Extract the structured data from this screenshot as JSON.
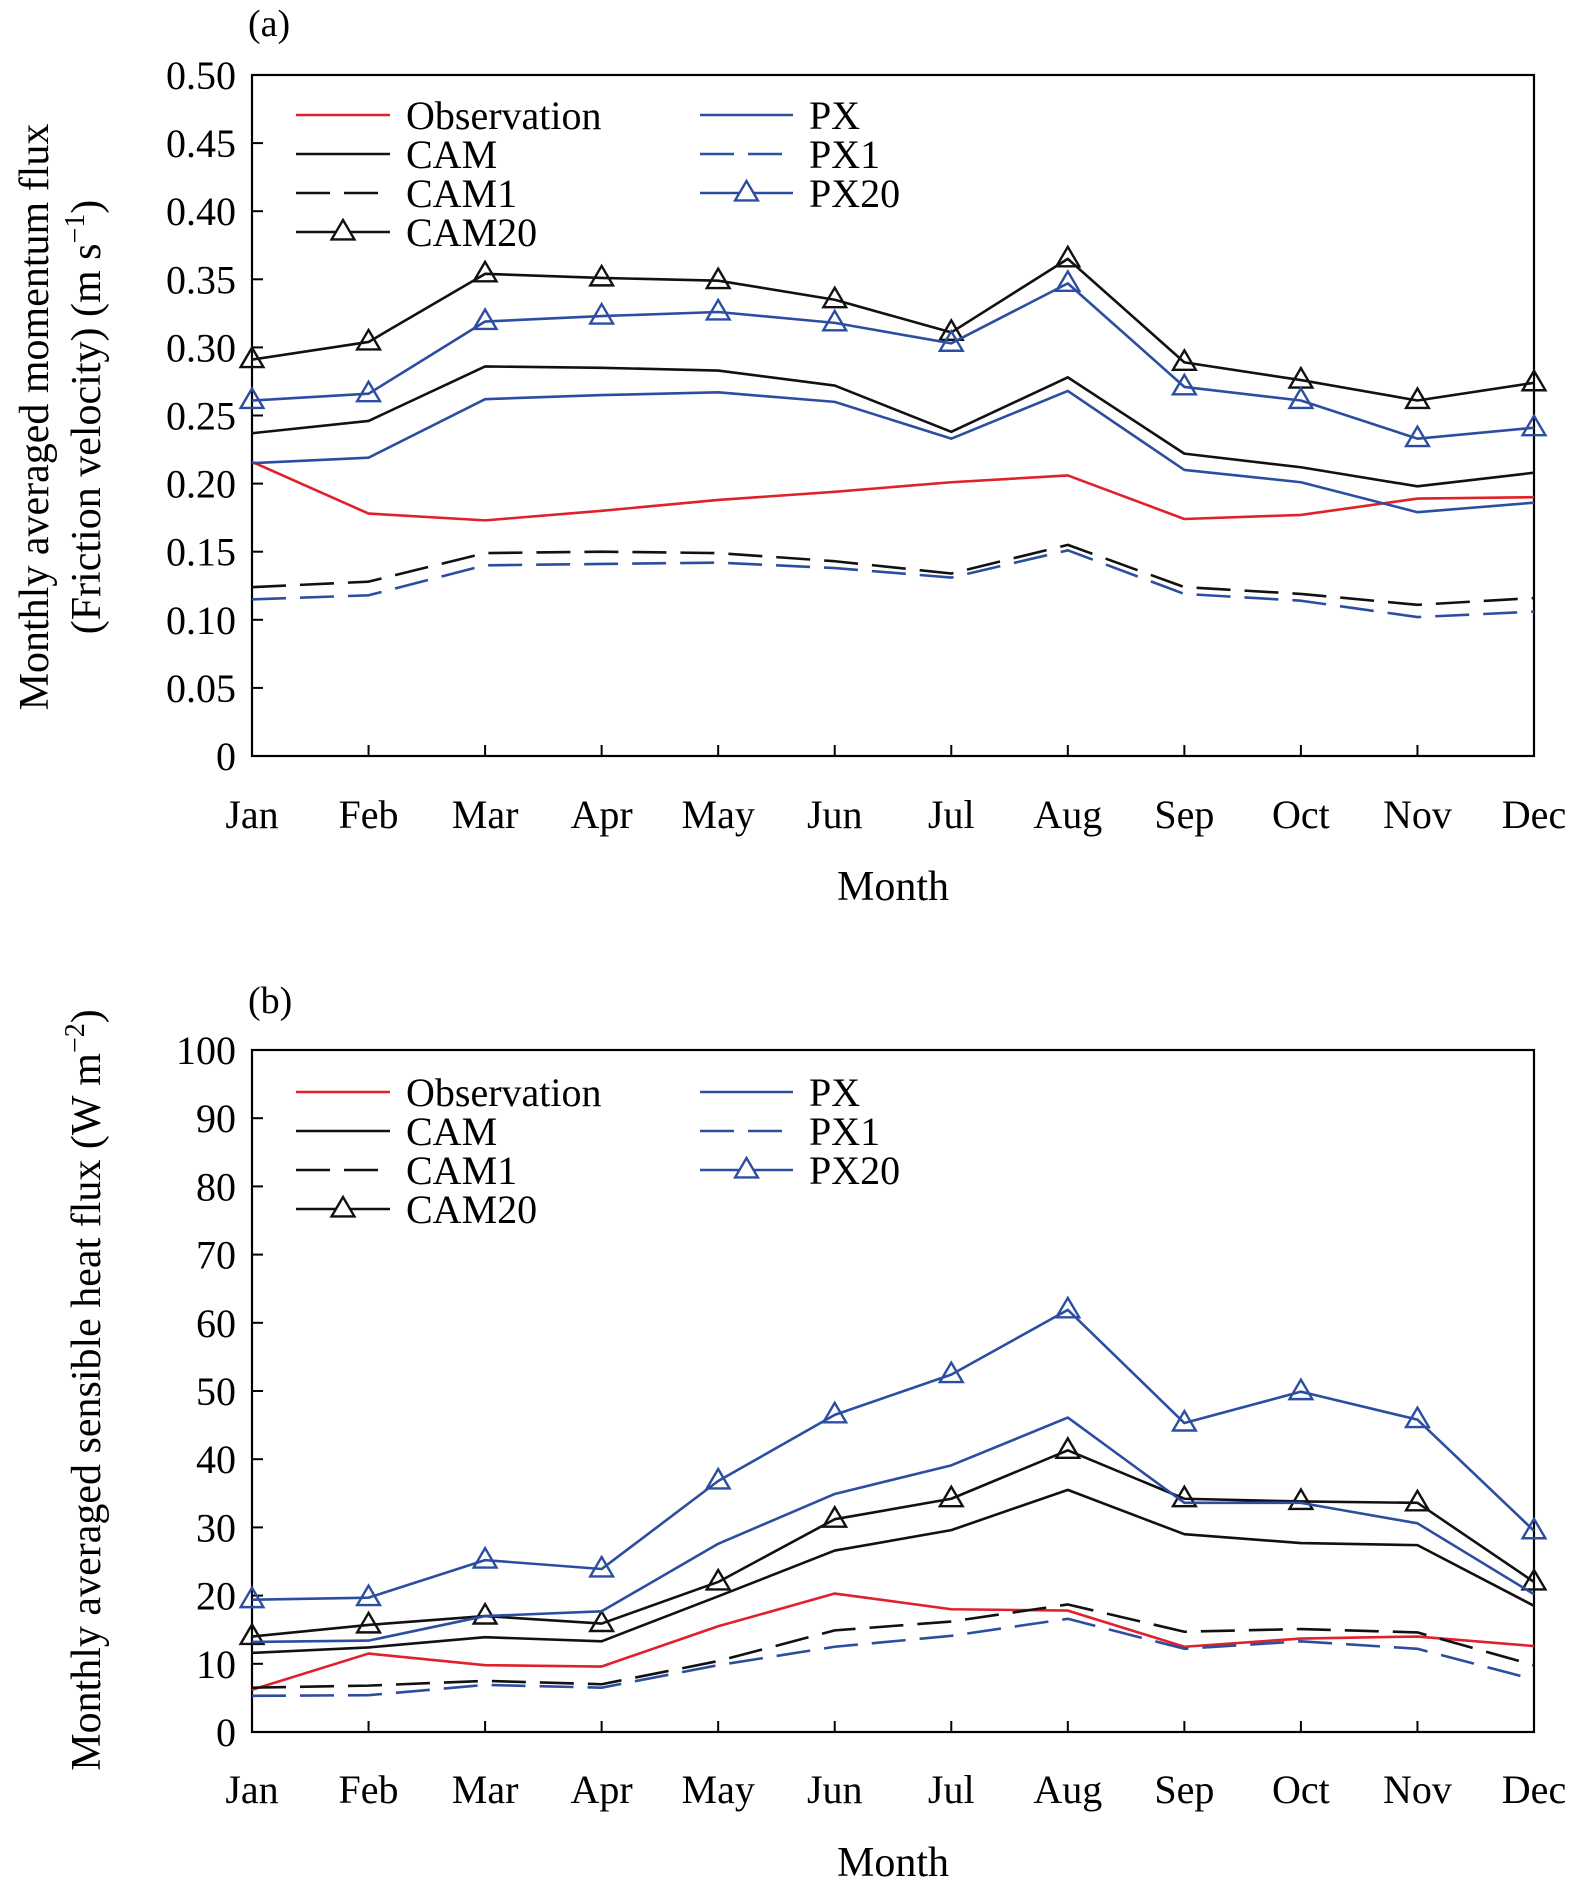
{
  "colors": {
    "observation": "#e0202a",
    "cam": "#111111",
    "px": "#2c4ea0"
  },
  "chart_data": [
    {
      "type": "line",
      "panel_label": "(a)",
      "xlabel": "Month",
      "ylabel_line1": "Monthly averaged momentum flux",
      "ylabel_line2": "(Friction velocity) (m s",
      "ylabel_sup": "−1",
      "ylabel_close": ")",
      "ylim": [
        0,
        0.5
      ],
      "yticks": [
        "0",
        "0.05",
        "0.10",
        "0.15",
        "0.20",
        "0.25",
        "0.30",
        "0.35",
        "0.40",
        "0.45",
        "0.50"
      ],
      "categories": [
        "Jan",
        "Feb",
        "Mar",
        "Apr",
        "May",
        "Jun",
        "Jul",
        "Aug",
        "Sep",
        "Oct",
        "Nov",
        "Dec"
      ],
      "legend_position": "top-left",
      "series": [
        {
          "name": "Observation",
          "color": "#e0202a",
          "style": "solid",
          "marker": "none",
          "values": [
            0.216,
            0.178,
            0.173,
            0.18,
            0.188,
            0.194,
            0.201,
            0.206,
            0.174,
            0.177,
            0.189,
            0.19
          ]
        },
        {
          "name": "CAM",
          "color": "#111111",
          "style": "solid",
          "marker": "none",
          "values": [
            0.237,
            0.246,
            0.286,
            0.285,
            0.283,
            0.272,
            0.238,
            0.278,
            0.222,
            0.212,
            0.198,
            0.208
          ]
        },
        {
          "name": "CAM1",
          "color": "#111111",
          "style": "dashed",
          "marker": "none",
          "values": [
            0.124,
            0.128,
            0.149,
            0.15,
            0.149,
            0.143,
            0.134,
            0.155,
            0.124,
            0.119,
            0.111,
            0.116
          ]
        },
        {
          "name": "CAM20",
          "color": "#111111",
          "style": "solid",
          "marker": "triangle",
          "values": [
            0.291,
            0.304,
            0.354,
            0.351,
            0.349,
            0.335,
            0.311,
            0.365,
            0.289,
            0.276,
            0.261,
            0.274
          ]
        },
        {
          "name": "PX",
          "color": "#2c4ea0",
          "style": "solid",
          "marker": "none",
          "values": [
            0.215,
            0.219,
            0.262,
            0.265,
            0.267,
            0.26,
            0.233,
            0.268,
            0.21,
            0.201,
            0.179,
            0.186
          ]
        },
        {
          "name": "PX1",
          "color": "#2c4ea0",
          "style": "dashed",
          "marker": "none",
          "values": [
            0.115,
            0.118,
            0.14,
            0.141,
            0.142,
            0.138,
            0.131,
            0.151,
            0.119,
            0.114,
            0.102,
            0.106
          ]
        },
        {
          "name": "PX20",
          "color": "#2c4ea0",
          "style": "solid",
          "marker": "triangle",
          "values": [
            0.261,
            0.266,
            0.319,
            0.323,
            0.326,
            0.318,
            0.303,
            0.347,
            0.271,
            0.261,
            0.233,
            0.241
          ]
        }
      ]
    },
    {
      "type": "line",
      "panel_label": "(b)",
      "xlabel": "Month",
      "ylabel_line1": "Monthly averaged sensible heat flux (W m",
      "ylabel_sup": "−2",
      "ylabel_close": ")",
      "ylim": [
        0,
        100
      ],
      "yticks": [
        "0",
        "10",
        "20",
        "30",
        "40",
        "50",
        "60",
        "70",
        "80",
        "90",
        "100"
      ],
      "categories": [
        "Jan",
        "Feb",
        "Mar",
        "Apr",
        "May",
        "Jun",
        "Jul",
        "Aug",
        "Sep",
        "Oct",
        "Nov",
        "Dec"
      ],
      "legend_position": "top-left",
      "series": [
        {
          "name": "Observation",
          "color": "#e0202a",
          "style": "solid",
          "marker": "none",
          "values": [
            6.2,
            11.5,
            9.8,
            9.6,
            15.5,
            20.3,
            18.0,
            17.8,
            12.5,
            13.7,
            14.0,
            12.6
          ]
        },
        {
          "name": "CAM",
          "color": "#111111",
          "style": "solid",
          "marker": "none",
          "values": [
            11.6,
            12.4,
            13.9,
            13.3,
            19.9,
            26.6,
            29.6,
            35.5,
            29.0,
            27.7,
            27.4,
            18.5
          ]
        },
        {
          "name": "CAM1",
          "color": "#111111",
          "style": "dashed",
          "marker": "none",
          "values": [
            6.5,
            6.8,
            7.5,
            7.0,
            10.4,
            14.9,
            16.2,
            18.7,
            14.7,
            15.1,
            14.6,
            9.8
          ]
        },
        {
          "name": "CAM20",
          "color": "#111111",
          "style": "solid",
          "marker": "triangle",
          "values": [
            14.0,
            15.7,
            17.0,
            15.9,
            22.0,
            31.2,
            34.2,
            41.3,
            34.2,
            33.8,
            33.6,
            22.0
          ]
        },
        {
          "name": "PX",
          "color": "#2c4ea0",
          "style": "solid",
          "marker": "none",
          "values": [
            13.2,
            13.4,
            17.0,
            17.7,
            27.6,
            34.9,
            39.1,
            46.1,
            33.6,
            33.6,
            30.6,
            20.2
          ]
        },
        {
          "name": "PX1",
          "color": "#2c4ea0",
          "style": "dashed",
          "marker": "none",
          "values": [
            5.3,
            5.4,
            6.9,
            6.5,
            9.8,
            12.5,
            14.1,
            16.6,
            12.2,
            13.3,
            12.2,
            7.7
          ]
        },
        {
          "name": "PX20",
          "color": "#2c4ea0",
          "style": "solid",
          "marker": "triangle",
          "values": [
            19.4,
            19.7,
            25.2,
            23.9,
            36.8,
            46.5,
            52.4,
            61.9,
            45.3,
            49.9,
            45.8,
            29.5
          ]
        }
      ]
    }
  ]
}
